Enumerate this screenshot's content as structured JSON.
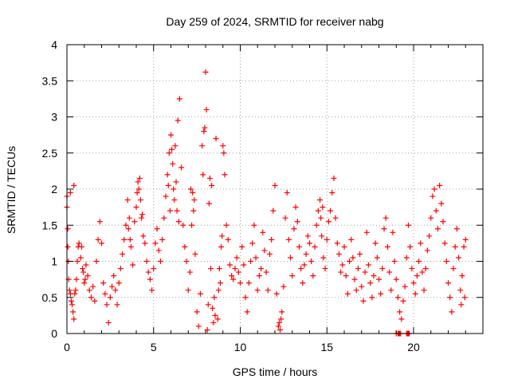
{
  "chart_data": {
    "type": "scatter",
    "title": "Day 259 of 2024, SRMTID for receiver nabg",
    "xlabel": "GPS time / hours",
    "ylabel": "SRMTID / TECUs",
    "xlim": [
      0,
      24
    ],
    "ylim": [
      0,
      4
    ],
    "xticks": [
      0,
      5,
      10,
      15,
      20
    ],
    "xtick_labels": [
      "0",
      "5",
      "10",
      "15",
      "20"
    ],
    "yticks": [
      0,
      0.5,
      1,
      1.5,
      2,
      2.5,
      3,
      3.5,
      4
    ],
    "ytick_labels": [
      "0",
      "0.5",
      "1",
      "1.5",
      "2",
      "2.5",
      "3",
      "3.5",
      "4"
    ],
    "grid": true,
    "marker": "plus",
    "color": "#ff0000",
    "series": [
      {
        "name": "nabg",
        "points": [
          [
            0.0,
            1.9
          ],
          [
            0.0,
            1.75
          ],
          [
            0.05,
            1.45
          ],
          [
            0.05,
            1.2
          ],
          [
            0.08,
            1.0
          ],
          [
            0.1,
            0.75
          ],
          [
            0.15,
            0.6
          ],
          [
            0.2,
            0.55
          ],
          [
            0.2,
            1.95
          ],
          [
            0.25,
            0.45
          ],
          [
            0.3,
            0.4
          ],
          [
            0.35,
            0.3
          ],
          [
            0.4,
            0.2
          ],
          [
            0.4,
            2.05
          ],
          [
            0.45,
            0.55
          ],
          [
            0.5,
            0.6
          ],
          [
            0.55,
            0.75
          ],
          [
            0.6,
            1.0
          ],
          [
            0.65,
            1.2
          ],
          [
            0.7,
            1.25
          ],
          [
            0.8,
            1.05
          ],
          [
            0.9,
            0.9
          ],
          [
            1.0,
            0.7
          ],
          [
            1.1,
            0.95
          ],
          [
            1.2,
            0.8
          ],
          [
            1.3,
            0.6
          ],
          [
            1.4,
            0.5
          ],
          [
            1.5,
            0.65
          ],
          [
            1.6,
            0.45
          ],
          [
            1.7,
            1.0
          ],
          [
            1.8,
            1.3
          ],
          [
            1.9,
            1.55
          ],
          [
            2.0,
            1.25
          ],
          [
            2.1,
            0.7
          ],
          [
            2.2,
            0.55
          ],
          [
            2.3,
            0.4
          ],
          [
            2.4,
            0.15
          ],
          [
            2.5,
            0.5
          ],
          [
            2.6,
            0.65
          ],
          [
            2.7,
            0.8
          ],
          [
            2.8,
            0.6
          ],
          [
            2.9,
            0.4
          ],
          [
            3.0,
            0.7
          ],
          [
            3.1,
            0.9
          ],
          [
            3.2,
            1.1
          ],
          [
            3.3,
            1.3
          ],
          [
            3.4,
            1.5
          ],
          [
            3.5,
            1.85
          ],
          [
            3.6,
            1.6
          ],
          [
            3.7,
            1.2
          ],
          [
            3.8,
            0.95
          ],
          [
            3.9,
            1.55
          ],
          [
            4.0,
            1.75
          ],
          [
            4.1,
            2.1
          ],
          [
            4.2,
            2.15
          ],
          [
            4.3,
            1.6
          ],
          [
            4.4,
            1.35
          ],
          [
            4.5,
            1.25
          ],
          [
            4.6,
            1.0
          ],
          [
            4.7,
            0.85
          ],
          [
            4.8,
            0.75
          ],
          [
            4.9,
            0.6
          ],
          [
            5.0,
            0.9
          ],
          [
            5.1,
            1.25
          ],
          [
            5.2,
            1.45
          ],
          [
            5.3,
            1.15
          ],
          [
            5.4,
            1.0
          ],
          [
            5.5,
            1.3
          ],
          [
            5.6,
            1.6
          ],
          [
            5.7,
            1.9
          ],
          [
            5.8,
            2.2
          ],
          [
            5.9,
            2.5
          ],
          [
            6.0,
            2.75
          ],
          [
            6.05,
            2.55
          ],
          [
            6.2,
            1.85
          ],
          [
            6.3,
            2.1
          ],
          [
            6.4,
            2.95
          ],
          [
            6.5,
            3.25
          ],
          [
            6.6,
            2.3
          ],
          [
            6.7,
            1.5
          ],
          [
            6.8,
            1.2
          ],
          [
            6.9,
            1.0
          ],
          [
            7.0,
            0.6
          ],
          [
            7.1,
            0.85
          ],
          [
            7.2,
            1.5
          ],
          [
            7.3,
            1.7
          ],
          [
            7.4,
            1.1
          ],
          [
            7.5,
            0.3
          ],
          [
            7.6,
            0.1
          ],
          [
            7.7,
            0.55
          ],
          [
            7.8,
            2.6
          ],
          [
            7.9,
            2.8
          ],
          [
            8.0,
            3.62
          ],
          [
            8.05,
            3.1
          ],
          [
            8.1,
            0.05
          ],
          [
            8.15,
            0.4
          ],
          [
            8.2,
            1.8
          ],
          [
            8.3,
            0.9
          ],
          [
            8.4,
            0.35
          ],
          [
            8.5,
            0.5
          ],
          [
            8.6,
            2.7
          ],
          [
            8.7,
            0.2
          ],
          [
            8.8,
            0.9
          ],
          [
            8.9,
            1.2
          ],
          [
            9.0,
            2.6
          ],
          [
            9.05,
            2.5
          ],
          [
            9.1,
            2.2
          ],
          [
            9.2,
            1.5
          ],
          [
            9.3,
            1.3
          ],
          [
            9.4,
            0.95
          ],
          [
            9.5,
            0.8
          ],
          [
            9.6,
            0.75
          ],
          [
            9.7,
            0.9
          ],
          [
            9.8,
            1.05
          ],
          [
            9.9,
            0.85
          ],
          [
            10.0,
            0.7
          ],
          [
            10.1,
            1.2
          ],
          [
            10.2,
            0.95
          ],
          [
            10.3,
            0.5
          ],
          [
            10.4,
            0.3
          ],
          [
            10.5,
            0.7
          ],
          [
            10.6,
            1.0
          ],
          [
            10.7,
            1.25
          ],
          [
            10.8,
            1.5
          ],
          [
            10.9,
            1.05
          ],
          [
            11.0,
            0.6
          ],
          [
            11.1,
            0.8
          ],
          [
            11.2,
            0.9
          ],
          [
            11.3,
            1.4
          ],
          [
            11.4,
            1.15
          ],
          [
            11.5,
            0.85
          ],
          [
            11.6,
            0.6
          ],
          [
            11.7,
            1.1
          ],
          [
            11.8,
            1.3
          ],
          [
            11.9,
            1.7
          ],
          [
            12.0,
            2.05
          ],
          [
            12.1,
            0.55
          ],
          [
            12.2,
            0.1
          ],
          [
            12.3,
            0.05
          ],
          [
            12.4,
            0.3
          ],
          [
            12.5,
            0.65
          ],
          [
            12.6,
            1.6
          ],
          [
            12.7,
            1.95
          ],
          [
            12.8,
            1.3
          ],
          [
            12.9,
            1.05
          ],
          [
            13.0,
            0.8
          ],
          [
            13.1,
            1.45
          ],
          [
            13.2,
            1.75
          ],
          [
            13.3,
            1.55
          ],
          [
            13.4,
            1.2
          ],
          [
            13.5,
            0.9
          ],
          [
            13.6,
            0.7
          ],
          [
            13.7,
            0.95
          ],
          [
            13.8,
            1.1
          ],
          [
            13.9,
            1.35
          ],
          [
            14.0,
            1.25
          ],
          [
            14.1,
            1.0
          ],
          [
            14.2,
            0.8
          ],
          [
            14.3,
            1.2
          ],
          [
            14.4,
            1.5
          ],
          [
            14.5,
            1.7
          ],
          [
            14.6,
            1.85
          ],
          [
            14.7,
            1.35
          ],
          [
            14.8,
            1.05
          ],
          [
            14.9,
            0.9
          ],
          [
            15.0,
            1.3
          ],
          [
            15.1,
            1.55
          ],
          [
            15.2,
            1.7
          ],
          [
            15.3,
            1.95
          ],
          [
            15.4,
            2.15
          ],
          [
            15.5,
            1.6
          ],
          [
            15.6,
            1.25
          ],
          [
            15.7,
            1.1
          ],
          [
            15.8,
            0.85
          ],
          [
            15.9,
            0.95
          ],
          [
            16.0,
            1.2
          ],
          [
            16.1,
            0.8
          ],
          [
            16.2,
            0.55
          ],
          [
            16.3,
            1.0
          ],
          [
            16.4,
            1.3
          ],
          [
            16.5,
            1.05
          ],
          [
            16.6,
            0.75
          ],
          [
            16.7,
            0.6
          ],
          [
            16.8,
            0.9
          ],
          [
            16.9,
            1.1
          ],
          [
            17.0,
            0.65
          ],
          [
            17.1,
            0.45
          ],
          [
            17.2,
            0.85
          ],
          [
            17.3,
            1.4
          ],
          [
            17.4,
            0.95
          ],
          [
            17.5,
            0.7
          ],
          [
            17.6,
            0.5
          ],
          [
            17.7,
            0.8
          ],
          [
            17.8,
            1.25
          ],
          [
            17.9,
            1.05
          ],
          [
            18.0,
            0.75
          ],
          [
            18.1,
            0.55
          ],
          [
            18.2,
            0.9
          ],
          [
            18.3,
            1.45
          ],
          [
            18.4,
            1.6
          ],
          [
            18.5,
            1.2
          ],
          [
            18.6,
            0.85
          ],
          [
            18.7,
            0.6
          ],
          [
            18.8,
            1.4
          ],
          [
            18.9,
            1.0
          ],
          [
            19.0,
            0.75
          ],
          [
            19.1,
            0.5
          ],
          [
            19.2,
            0.3
          ],
          [
            19.3,
            0.2
          ],
          [
            19.4,
            0.45
          ],
          [
            19.5,
            0.65
          ],
          [
            19.6,
            1.05
          ],
          [
            19.7,
            1.5
          ],
          [
            19.8,
            1.2
          ],
          [
            19.9,
            0.9
          ],
          [
            20.0,
            0.7
          ],
          [
            20.1,
            0.55
          ],
          [
            20.2,
            0.8
          ],
          [
            20.3,
            1.0
          ],
          [
            20.4,
            1.25
          ],
          [
            20.5,
            0.85
          ],
          [
            20.6,
            0.6
          ],
          [
            20.7,
            0.9
          ],
          [
            20.8,
            1.15
          ],
          [
            20.9,
            1.35
          ],
          [
            21.0,
            1.6
          ],
          [
            21.1,
            1.9
          ],
          [
            21.2,
            2.0
          ],
          [
            21.3,
            1.7
          ],
          [
            21.4,
            1.45
          ],
          [
            21.5,
            2.05
          ],
          [
            21.6,
            1.8
          ],
          [
            21.7,
            1.55
          ],
          [
            21.8,
            1.25
          ],
          [
            21.9,
            1.0
          ],
          [
            22.0,
            0.7
          ],
          [
            22.1,
            0.5
          ],
          [
            22.2,
            0.3
          ],
          [
            22.3,
            0.9
          ],
          [
            22.4,
            1.2
          ],
          [
            22.5,
            1.45
          ],
          [
            22.6,
            1.05
          ],
          [
            22.7,
            0.6
          ],
          [
            22.75,
            0.4
          ],
          [
            22.8,
            0.8
          ],
          [
            22.9,
            1.2
          ],
          [
            22.95,
            0.5
          ],
          [
            23.0,
            1.3
          ],
          [
            19.0,
            0.0
          ],
          [
            19.1,
            0.0
          ],
          [
            19.15,
            0.0
          ],
          [
            19.2,
            0.0
          ],
          [
            19.25,
            0.0
          ],
          [
            19.6,
            0.0
          ],
          [
            19.65,
            0.0
          ],
          [
            19.7,
            0.0
          ],
          [
            19.75,
            0.0
          ],
          [
            5.85,
            2.05
          ],
          [
            5.95,
            1.7
          ],
          [
            6.1,
            2.35
          ],
          [
            6.15,
            2.0
          ],
          [
            6.25,
            2.6
          ],
          [
            6.35,
            1.7
          ],
          [
            6.45,
            1.55
          ],
          [
            4.05,
            1.95
          ],
          [
            4.15,
            2.0
          ],
          [
            4.25,
            1.85
          ],
          [
            4.35,
            1.65
          ],
          [
            3.55,
            1.45
          ],
          [
            3.65,
            1.3
          ],
          [
            0.85,
            1.2
          ],
          [
            0.95,
            0.85
          ],
          [
            1.05,
            0.75
          ],
          [
            8.45,
            0.15
          ],
          [
            8.55,
            0.25
          ],
          [
            8.75,
            0.6
          ],
          [
            8.85,
            0.7
          ],
          [
            8.95,
            1.35
          ],
          [
            12.25,
            0.15
          ],
          [
            12.35,
            0.2
          ],
          [
            7.95,
            2.85
          ],
          [
            8.25,
            2.15
          ],
          [
            8.35,
            2.05
          ],
          [
            7.85,
            2.2
          ],
          [
            7.15,
            2.0
          ],
          [
            7.25,
            1.95
          ],
          [
            7.35,
            1.85
          ],
          [
            14.65,
            1.6
          ],
          [
            14.75,
            1.75
          ]
        ]
      }
    ]
  }
}
